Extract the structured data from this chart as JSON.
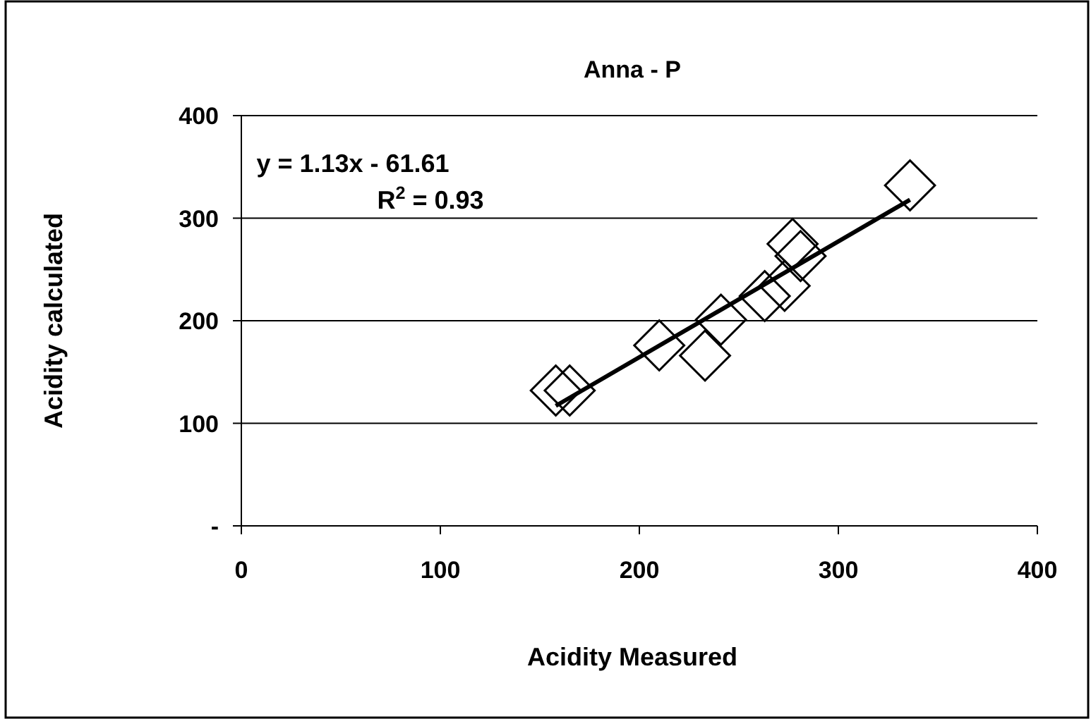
{
  "chart_data": {
    "type": "scatter",
    "title": "Anna - P",
    "xlabel": "Acidity Measured",
    "ylabel": "Acidity calculated",
    "xlim": [
      0,
      400
    ],
    "xticks": [
      0,
      100,
      200,
      300,
      400
    ],
    "ylim": [
      0,
      400
    ],
    "yticks": [
      {
        "value": 0,
        "label": "-"
      },
      100,
      200,
      300,
      400
    ],
    "grid": "y",
    "marker": "diamond",
    "annotations": [
      "y = 1.13x - 61.61",
      "R$^{2}$ = 0.93"
    ],
    "series": [
      {
        "color": "#000000",
        "x": [
          158,
          165,
          210,
          233,
          241,
          263,
          273,
          277,
          281,
          336
        ],
        "values": [
          132,
          132,
          176,
          166,
          201,
          224,
          234,
          275,
          263,
          332
        ]
      },
      {
        "type": "line",
        "color": "#000000",
        "marker": "none",
        "x": [
          158,
          336
        ],
        "values": [
          117,
          318
        ]
      }
    ]
  }
}
